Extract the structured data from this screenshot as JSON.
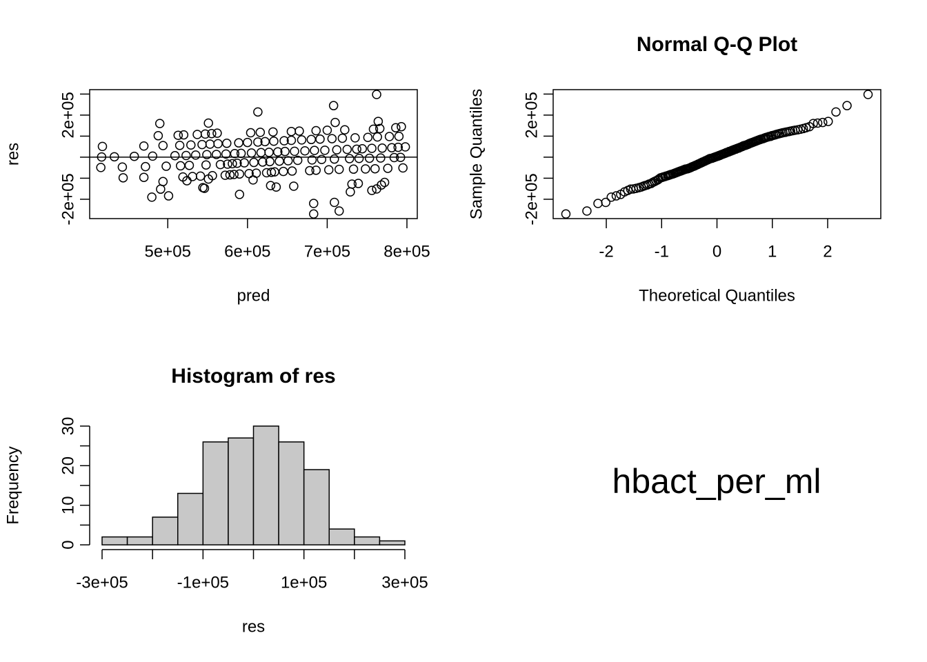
{
  "chart_data": [
    {
      "type": "scatter",
      "xlabel": "pred",
      "ylabel": "res",
      "color": "#000000",
      "box": true,
      "hline": 0,
      "xlim": [
        402000,
        813000
      ],
      "ylim": [
        -292000,
        321000
      ],
      "xticks": [
        {
          "value": 500000,
          "label": "5e+05"
        },
        {
          "value": 600000,
          "label": "6e+05"
        },
        {
          "value": 700000,
          "label": "7e+05"
        },
        {
          "value": 800000,
          "label": "8e+05"
        }
      ],
      "yticks": [
        {
          "value": -200000,
          "label": "-2e+05"
        },
        {
          "value": 200000,
          "label": "2e+05"
        }
      ],
      "yminor": [
        -100000,
        0,
        100000,
        300000
      ],
      "x": [
        683000,
        715000,
        683000,
        709000,
        480000,
        501000,
        590000,
        729000,
        756000,
        491000,
        762000,
        546000,
        544000,
        636000,
        658000,
        629000,
        768000,
        731000,
        739000,
        772000,
        494000,
        524000,
        607000,
        551000,
        444000,
        470000,
        519000,
        531000,
        541000,
        556000,
        572000,
        578000,
        583000,
        590000,
        602000,
        611000,
        624000,
        630000,
        634000,
        645000,
        656000,
        678000,
        686000,
        702000,
        715000,
        733000,
        748000,
        760000,
        776000,
        795000,
        416000,
        443000,
        472000,
        498000,
        516000,
        527000,
        548000,
        566000,
        575000,
        581000,
        587000,
        596000,
        608000,
        619000,
        628000,
        640000,
        651000,
        663000,
        681000,
        693000,
        709000,
        728000,
        740000,
        753000,
        767000,
        784000,
        792000,
        417000,
        433000,
        458000,
        481000,
        509000,
        523000,
        535000,
        549000,
        561000,
        573000,
        584000,
        592000,
        605000,
        617000,
        627000,
        638000,
        647000,
        659000,
        672000,
        684000,
        697000,
        712000,
        725000,
        737000,
        744000,
        756000,
        769000,
        781000,
        789000,
        798000,
        418000,
        470000,
        494000,
        515000,
        529000,
        543000,
        553000,
        563000,
        574000,
        589000,
        600000,
        613000,
        622000,
        633000,
        646000,
        655000,
        668000,
        680000,
        691000,
        706000,
        719000,
        735000,
        751000,
        763000,
        778000,
        790000,
        488000,
        513000,
        520000,
        537000,
        547000,
        555000,
        562000,
        604000,
        616000,
        632000,
        655000,
        665000,
        686000,
        700000,
        722000,
        758000,
        766000,
        786000,
        793000,
        490000,
        551000,
        710000,
        764000,
        613000,
        708000,
        762000
      ],
      "y": [
        -270000,
        -256000,
        -220000,
        -215000,
        -190000,
        -184000,
        -177000,
        -165000,
        -158000,
        -152000,
        -151000,
        -148000,
        -145000,
        -142000,
        -138000,
        -135000,
        -132000,
        -128000,
        -125000,
        -120000,
        -116000,
        -112000,
        -108000,
        -104000,
        -98000,
        -96000,
        -94000,
        -92000,
        -90000,
        -88000,
        -86000,
        -84000,
        -82000,
        -80000,
        -78000,
        -76000,
        -74000,
        -72000,
        -70000,
        -68000,
        -66000,
        -64000,
        -62000,
        -60000,
        -58000,
        -57000,
        -56000,
        -55000,
        -53000,
        -51000,
        -49000,
        -47000,
        -45000,
        -43000,
        -41000,
        -39000,
        -37000,
        -35000,
        -33000,
        -31000,
        -29000,
        -27000,
        -25000,
        -23000,
        -21000,
        -19000,
        -17000,
        -15000,
        -13000,
        -11000,
        -9000,
        -7000,
        -6000,
        -5000,
        -4000,
        -2000,
        -1000,
        1000,
        2000,
        4000,
        5000,
        7000,
        8000,
        10000,
        12000,
        13000,
        15000,
        17000,
        18000,
        20000,
        22000,
        23000,
        25000,
        27000,
        28000,
        30000,
        32000,
        33000,
        35000,
        37000,
        38000,
        40000,
        42000,
        43000,
        45000,
        47000,
        49000,
        51000,
        53000,
        55000,
        56000,
        58000,
        60000,
        62000,
        64000,
        66000,
        68000,
        70000,
        72000,
        74000,
        76000,
        78000,
        80000,
        82000,
        84000,
        86000,
        88000,
        90000,
        92000,
        94000,
        96000,
        98000,
        99000,
        102000,
        104000,
        106000,
        108000,
        110000,
        112000,
        114000,
        116000,
        118000,
        120000,
        122000,
        124000,
        126000,
        128000,
        130000,
        133000,
        136000,
        140000,
        145000,
        160000,
        162000,
        165000,
        170000,
        215000,
        245000,
        298000
      ]
    },
    {
      "type": "scatter",
      "title": "Normal Q-Q Plot",
      "xlabel": "Theoretical Quantiles",
      "ylabel": "Sample Quantiles",
      "color": "#000000",
      "box": true,
      "xlim": [
        -2.96,
        2.96
      ],
      "ylim": [
        -292000,
        321000
      ],
      "xticks": [
        -2,
        -1,
        0,
        1,
        2
      ],
      "yticks": [
        {
          "value": -200000,
          "label": "-2e+05"
        },
        {
          "value": 200000,
          "label": "2e+05"
        }
      ],
      "yminor": [
        -100000,
        0,
        100000,
        300000
      ],
      "x": [
        -2.73,
        -2.35,
        -2.15,
        -2.01,
        -1.91,
        -1.82,
        -1.74,
        -1.67,
        -1.61,
        -1.56,
        -1.51,
        -1.46,
        -1.41,
        -1.37,
        -1.33,
        -1.3,
        -1.26,
        -1.23,
        -1.19,
        -1.16,
        -1.13,
        -1.1,
        -1.07,
        -1.05,
        -1.02,
        -0.99,
        -0.97,
        -0.94,
        -0.92,
        -0.89,
        -0.87,
        -0.85,
        -0.83,
        -0.8,
        -0.78,
        -0.76,
        -0.74,
        -0.72,
        -0.7,
        -0.68,
        -0.66,
        -0.64,
        -0.62,
        -0.6,
        -0.58,
        -0.57,
        -0.55,
        -0.53,
        -0.51,
        -0.49,
        -0.47,
        -0.46,
        -0.44,
        -0.42,
        -0.4,
        -0.39,
        -0.37,
        -0.35,
        -0.34,
        -0.32,
        -0.3,
        -0.29,
        -0.27,
        -0.26,
        -0.24,
        -0.22,
        -0.21,
        -0.19,
        -0.17,
        -0.16,
        -0.14,
        -0.13,
        -0.11,
        -0.09,
        -0.08,
        -0.06,
        -0.05,
        -0.03,
        -0.02,
        0,
        0.02,
        0.03,
        0.05,
        0.06,
        0.08,
        0.09,
        0.11,
        0.13,
        0.14,
        0.16,
        0.17,
        0.19,
        0.21,
        0.22,
        0.24,
        0.26,
        0.27,
        0.29,
        0.3,
        0.32,
        0.34,
        0.35,
        0.37,
        0.39,
        0.4,
        0.42,
        0.44,
        0.46,
        0.47,
        0.49,
        0.51,
        0.53,
        0.55,
        0.57,
        0.58,
        0.6,
        0.62,
        0.64,
        0.66,
        0.68,
        0.7,
        0.72,
        0.74,
        0.76,
        0.78,
        0.8,
        0.83,
        0.85,
        0.87,
        0.89,
        0.92,
        0.94,
        0.97,
        0.99,
        1.02,
        1.05,
        1.07,
        1.1,
        1.13,
        1.16,
        1.19,
        1.23,
        1.26,
        1.3,
        1.33,
        1.37,
        1.41,
        1.46,
        1.51,
        1.56,
        1.61,
        1.67,
        1.74,
        1.82,
        1.91,
        2.01,
        2.15,
        2.35,
        2.73
      ],
      "y": [
        -270000,
        -256000,
        -220000,
        -215000,
        -190000,
        -184000,
        -177000,
        -165000,
        -158000,
        -152000,
        -151000,
        -148000,
        -145000,
        -142000,
        -138000,
        -135000,
        -132000,
        -128000,
        -125000,
        -120000,
        -116000,
        -112000,
        -108000,
        -104000,
        -98000,
        -96000,
        -94000,
        -92000,
        -90000,
        -88000,
        -86000,
        -84000,
        -82000,
        -80000,
        -78000,
        -76000,
        -74000,
        -72000,
        -70000,
        -68000,
        -66000,
        -64000,
        -62000,
        -60000,
        -58000,
        -57000,
        -56000,
        -55000,
        -53000,
        -51000,
        -49000,
        -47000,
        -45000,
        -43000,
        -41000,
        -39000,
        -37000,
        -35000,
        -33000,
        -31000,
        -29000,
        -27000,
        -25000,
        -23000,
        -21000,
        -19000,
        -17000,
        -15000,
        -13000,
        -11000,
        -9000,
        -7000,
        -6000,
        -5000,
        -4000,
        -2000,
        -1000,
        1000,
        2000,
        4000,
        5000,
        7000,
        8000,
        10000,
        12000,
        13000,
        15000,
        17000,
        18000,
        20000,
        22000,
        23000,
        25000,
        27000,
        28000,
        30000,
        32000,
        33000,
        35000,
        37000,
        38000,
        40000,
        42000,
        43000,
        45000,
        47000,
        49000,
        51000,
        53000,
        55000,
        56000,
        58000,
        60000,
        62000,
        64000,
        66000,
        68000,
        70000,
        72000,
        74000,
        76000,
        78000,
        80000,
        82000,
        84000,
        86000,
        88000,
        90000,
        92000,
        94000,
        96000,
        98000,
        99000,
        102000,
        104000,
        106000,
        108000,
        110000,
        112000,
        114000,
        116000,
        118000,
        120000,
        122000,
        124000,
        126000,
        128000,
        130000,
        133000,
        136000,
        140000,
        145000,
        160000,
        162000,
        165000,
        170000,
        215000,
        245000,
        298000
      ]
    },
    {
      "type": "histogram",
      "title": "Histogram of res",
      "xlabel": "res",
      "ylabel": "Frequency",
      "color": "#c8c8c8",
      "box": false,
      "xlim": [
        -324600,
        324600
      ],
      "ylim": [
        -1.2,
        31.2
      ],
      "xticks": [
        {
          "value": -300000,
          "label": "-3e+05"
        },
        {
          "value": -100000,
          "label": "-1e+05"
        },
        {
          "value": 100000,
          "label": "1e+05"
        },
        {
          "value": 300000,
          "label": "3e+05"
        }
      ],
      "xminor": [
        -200000,
        0,
        200000
      ],
      "yticks": [
        0,
        10,
        20,
        30
      ],
      "yminor": [
        5,
        15,
        25
      ],
      "bins": [
        -300000,
        -250000,
        -200000,
        -150000,
        -100000,
        -50000,
        0,
        50000,
        100000,
        150000,
        200000,
        250000,
        300000
      ],
      "counts": [
        2,
        2,
        7,
        13,
        26,
        27,
        30,
        26,
        19,
        4,
        2,
        1
      ]
    }
  ],
  "panel_text": "hbact_per_ml"
}
